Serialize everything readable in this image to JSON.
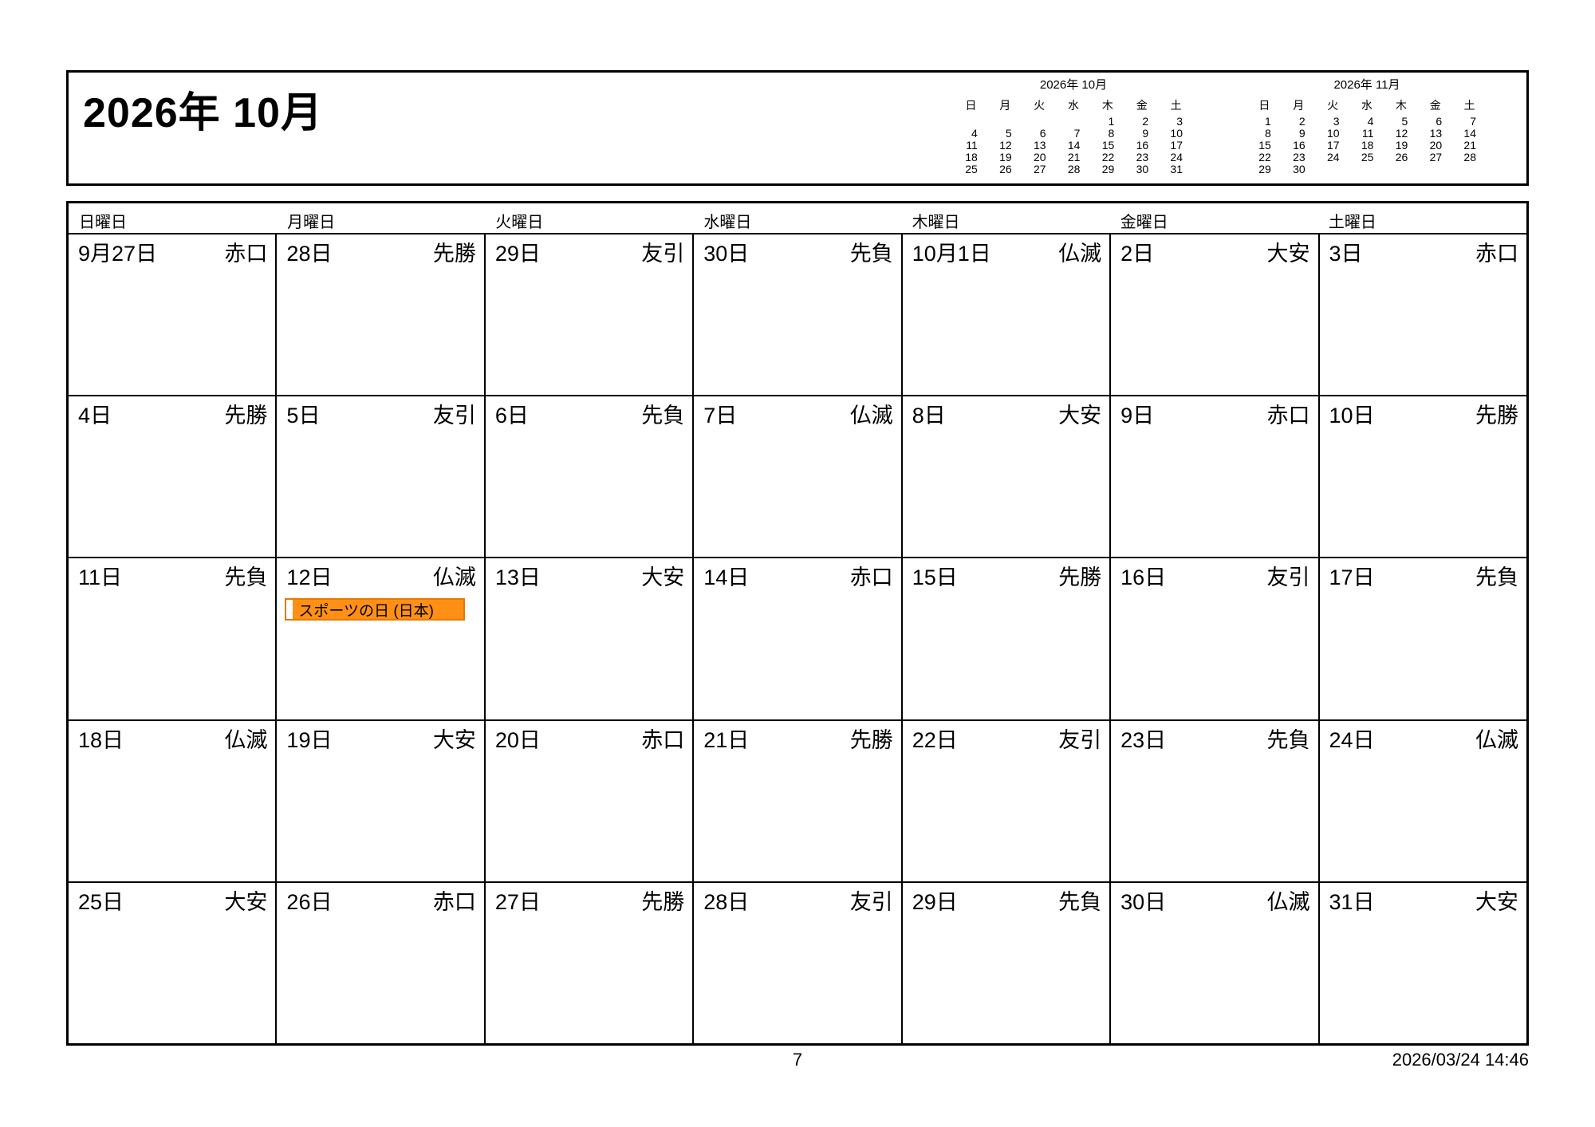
{
  "page": {
    "title": "2026年 10月",
    "footer": {
      "page_number": "7",
      "timestamp": "2026/03/24 14:46"
    }
  },
  "mini_calendars": [
    {
      "title": "2026年 10月",
      "day_headers": [
        "日",
        "月",
        "火",
        "水",
        "木",
        "金",
        "土"
      ],
      "weeks": [
        [
          "",
          "",
          "",
          "",
          "1",
          "2",
          "3"
        ],
        [
          "4",
          "5",
          "6",
          "7",
          "8",
          "9",
          "10"
        ],
        [
          "11",
          "12",
          "13",
          "14",
          "15",
          "16",
          "17"
        ],
        [
          "18",
          "19",
          "20",
          "21",
          "22",
          "23",
          "24"
        ],
        [
          "25",
          "26",
          "27",
          "28",
          "29",
          "30",
          "31"
        ]
      ]
    },
    {
      "title": "2026年 11月",
      "day_headers": [
        "日",
        "月",
        "火",
        "水",
        "木",
        "金",
        "土"
      ],
      "weeks": [
        [
          "1",
          "2",
          "3",
          "4",
          "5",
          "6",
          "7"
        ],
        [
          "8",
          "9",
          "10",
          "11",
          "12",
          "13",
          "14"
        ],
        [
          "15",
          "16",
          "17",
          "18",
          "19",
          "20",
          "21"
        ],
        [
          "22",
          "23",
          "24",
          "25",
          "26",
          "27",
          "28"
        ],
        [
          "29",
          "30",
          "",
          "",
          "",
          "",
          ""
        ]
      ]
    }
  ],
  "main_calendar": {
    "day_headers": [
      "日曜日",
      "月曜日",
      "火曜日",
      "水曜日",
      "木曜日",
      "金曜日",
      "土曜日"
    ],
    "weeks": [
      [
        {
          "date": "9月27日",
          "rokuyo": "赤口"
        },
        {
          "date": "28日",
          "rokuyo": "先勝"
        },
        {
          "date": "29日",
          "rokuyo": "友引"
        },
        {
          "date": "30日",
          "rokuyo": "先負"
        },
        {
          "date": "10月1日",
          "rokuyo": "仏滅"
        },
        {
          "date": "2日",
          "rokuyo": "大安"
        },
        {
          "date": "3日",
          "rokuyo": "赤口"
        }
      ],
      [
        {
          "date": "4日",
          "rokuyo": "先勝"
        },
        {
          "date": "5日",
          "rokuyo": "友引"
        },
        {
          "date": "6日",
          "rokuyo": "先負"
        },
        {
          "date": "7日",
          "rokuyo": "仏滅"
        },
        {
          "date": "8日",
          "rokuyo": "大安"
        },
        {
          "date": "9日",
          "rokuyo": "赤口"
        },
        {
          "date": "10日",
          "rokuyo": "先勝"
        }
      ],
      [
        {
          "date": "11日",
          "rokuyo": "先負"
        },
        {
          "date": "12日",
          "rokuyo": "仏滅",
          "event": "スポーツの日 (日本)"
        },
        {
          "date": "13日",
          "rokuyo": "大安"
        },
        {
          "date": "14日",
          "rokuyo": "赤口"
        },
        {
          "date": "15日",
          "rokuyo": "先勝"
        },
        {
          "date": "16日",
          "rokuyo": "友引"
        },
        {
          "date": "17日",
          "rokuyo": "先負"
        }
      ],
      [
        {
          "date": "18日",
          "rokuyo": "仏滅"
        },
        {
          "date": "19日",
          "rokuyo": "大安"
        },
        {
          "date": "20日",
          "rokuyo": "赤口"
        },
        {
          "date": "21日",
          "rokuyo": "先勝"
        },
        {
          "date": "22日",
          "rokuyo": "友引"
        },
        {
          "date": "23日",
          "rokuyo": "先負"
        },
        {
          "date": "24日",
          "rokuyo": "仏滅"
        }
      ],
      [
        {
          "date": "25日",
          "rokuyo": "大安"
        },
        {
          "date": "26日",
          "rokuyo": "赤口"
        },
        {
          "date": "27日",
          "rokuyo": "先勝"
        },
        {
          "date": "28日",
          "rokuyo": "友引"
        },
        {
          "date": "29日",
          "rokuyo": "先負"
        },
        {
          "date": "30日",
          "rokuyo": "仏滅"
        },
        {
          "date": "31日",
          "rokuyo": "大安"
        }
      ]
    ]
  },
  "event_style": {
    "fill": "#ff9015",
    "border": "#e87800",
    "color_box": "#ffffff"
  }
}
